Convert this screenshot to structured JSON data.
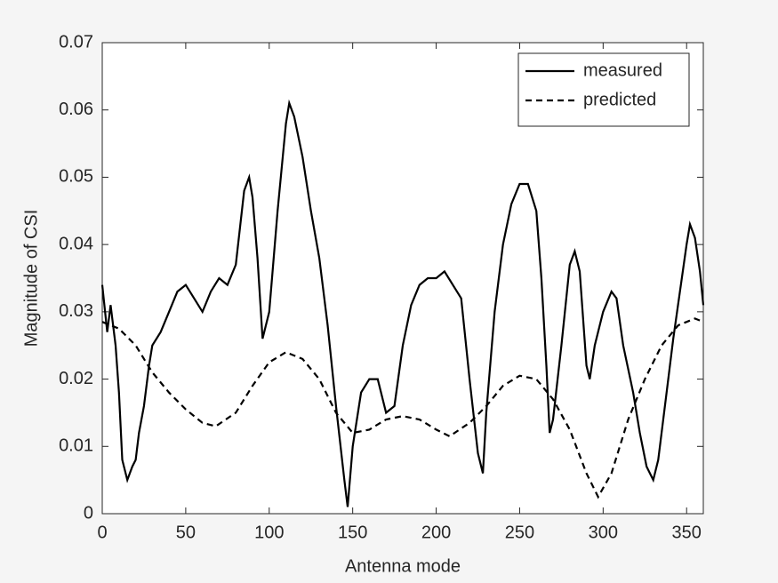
{
  "chart_data": {
    "type": "line",
    "xlabel": "Antenna mode",
    "ylabel": "Magnitude of CSI",
    "xlim": [
      0,
      360
    ],
    "xticks": [
      0,
      50,
      100,
      150,
      200,
      250,
      300,
      350
    ],
    "ylim": [
      0,
      0.07
    ],
    "yticks": [
      0,
      0.01,
      0.02,
      0.03,
      0.04,
      0.05,
      0.06,
      0.07
    ],
    "legend": "northeast",
    "series": [
      {
        "name": "measured",
        "color": "#000000",
        "linestyle": "solid",
        "x": [
          0,
          3,
          5,
          8,
          10,
          12,
          15,
          18,
          20,
          22,
          25,
          28,
          30,
          35,
          40,
          45,
          50,
          55,
          60,
          65,
          70,
          75,
          80,
          85,
          88,
          90,
          93,
          96,
          100,
          105,
          110,
          112,
          115,
          120,
          125,
          130,
          135,
          140,
          145,
          147,
          150,
          155,
          160,
          165,
          170,
          175,
          180,
          185,
          190,
          195,
          200,
          205,
          210,
          215,
          220,
          225,
          228,
          230,
          235,
          240,
          245,
          250,
          255,
          260,
          263,
          266,
          268,
          270,
          275,
          280,
          283,
          286,
          290,
          292,
          295,
          300,
          305,
          308,
          312,
          318,
          322,
          326,
          330,
          333,
          338,
          342,
          346,
          350,
          352,
          355,
          358,
          360
        ],
        "values": [
          0.034,
          0.027,
          0.031,
          0.025,
          0.018,
          0.008,
          0.005,
          0.007,
          0.008,
          0.012,
          0.016,
          0.022,
          0.025,
          0.027,
          0.03,
          0.033,
          0.034,
          0.032,
          0.03,
          0.033,
          0.035,
          0.034,
          0.037,
          0.048,
          0.05,
          0.047,
          0.038,
          0.026,
          0.03,
          0.045,
          0.058,
          0.061,
          0.059,
          0.053,
          0.045,
          0.038,
          0.028,
          0.016,
          0.005,
          0.001,
          0.01,
          0.018,
          0.02,
          0.02,
          0.015,
          0.016,
          0.025,
          0.031,
          0.034,
          0.035,
          0.035,
          0.036,
          0.034,
          0.032,
          0.02,
          0.009,
          0.006,
          0.015,
          0.03,
          0.04,
          0.046,
          0.049,
          0.049,
          0.045,
          0.035,
          0.022,
          0.012,
          0.014,
          0.025,
          0.037,
          0.039,
          0.036,
          0.022,
          0.02,
          0.025,
          0.03,
          0.033,
          0.032,
          0.025,
          0.018,
          0.012,
          0.007,
          0.005,
          0.008,
          0.018,
          0.026,
          0.033,
          0.04,
          0.043,
          0.041,
          0.036,
          0.031
        ]
      },
      {
        "name": "predicted",
        "color": "#000000",
        "linestyle": "dashed",
        "x": [
          0,
          10,
          20,
          30,
          40,
          50,
          60,
          68,
          80,
          90,
          100,
          110,
          120,
          130,
          140,
          150,
          160,
          170,
          180,
          190,
          200,
          208,
          220,
          230,
          240,
          250,
          260,
          270,
          280,
          290,
          297,
          305,
          315,
          325,
          335,
          345,
          355,
          360
        ],
        "values": [
          0.0285,
          0.0275,
          0.025,
          0.021,
          0.018,
          0.0155,
          0.0135,
          0.013,
          0.015,
          0.019,
          0.0225,
          0.024,
          0.023,
          0.02,
          0.015,
          0.012,
          0.0125,
          0.014,
          0.0145,
          0.014,
          0.0125,
          0.0115,
          0.0135,
          0.016,
          0.019,
          0.0205,
          0.02,
          0.017,
          0.0125,
          0.006,
          0.0025,
          0.006,
          0.014,
          0.02,
          0.025,
          0.028,
          0.029,
          0.0285
        ]
      }
    ]
  }
}
